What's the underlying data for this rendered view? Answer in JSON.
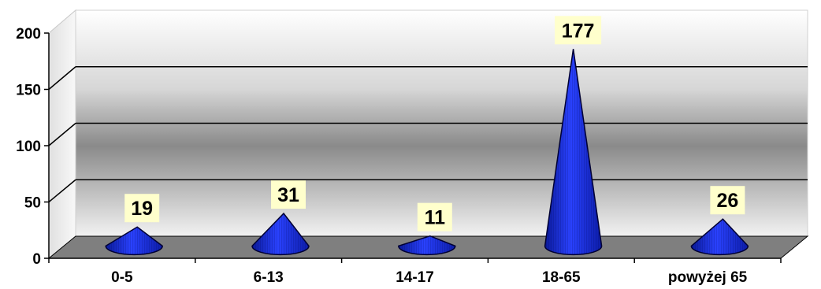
{
  "chart_data": {
    "type": "bar",
    "bar_shape": "cone",
    "categories": [
      "0-5",
      "6-13",
      "14-17",
      "18-65",
      "powyżej 65"
    ],
    "values": [
      19,
      31,
      11,
      177,
      26
    ],
    "data_labels": [
      "19",
      "31",
      "11",
      "177",
      "26"
    ],
    "title": "",
    "xlabel": "",
    "ylabel": "",
    "ylim": [
      0,
      200
    ],
    "yticks": [
      0,
      50,
      100,
      150,
      200
    ],
    "ytick_labels": [
      "0",
      "50",
      "100",
      "150",
      "200"
    ],
    "grid": true,
    "legend": "none",
    "colors": {
      "bar_fill": "#1a2fd0",
      "bar_stroke": "#000033",
      "label_bg": "#ffffcc",
      "floor": "#7f7f7f",
      "back_wall_light": "#ffffff",
      "back_wall_dark": "#6b6b6b"
    }
  }
}
